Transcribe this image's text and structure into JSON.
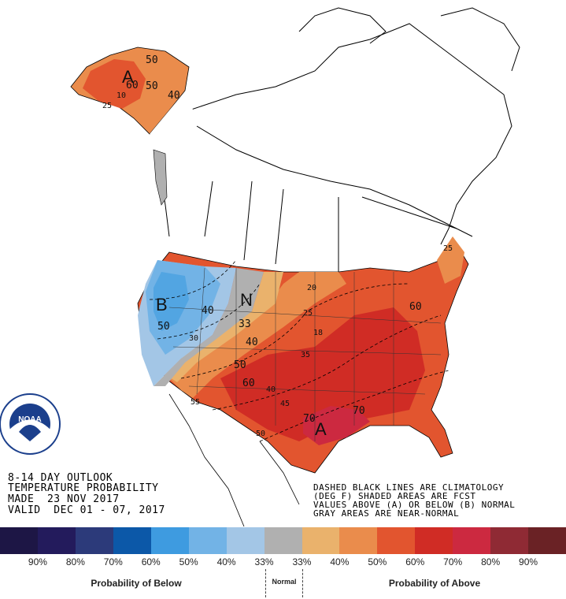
{
  "outlook": {
    "line1": "8-14 DAY OUTLOOK",
    "line2": "TEMPERATURE PROBABILITY",
    "line3": "MADE  23 NOV 2017",
    "line4": "VALID  DEC 01 - 07, 2017"
  },
  "notes": {
    "line1": "DASHED BLACK LINES ARE CLIMATOLOGY",
    "line2": "(DEG F) SHADED AREAS ARE FCST",
    "line3": "VALUES ABOVE (A) OR BELOW (B) NORMAL",
    "line4": "GRAY AREAS ARE NEAR-NORMAL"
  },
  "logo": {
    "text": "NOAA",
    "ring_text": "NATIONAL OCEANIC AND ATMOSPHERIC ADMINISTRATION · U.S. DEPARTMENT OF COMMERCE"
  },
  "map_labels": {
    "alaska_letter": "A",
    "alaska_50a": "50",
    "alaska_60": "60",
    "alaska_50b": "50",
    "alaska_40": "40",
    "alaska_25": "25",
    "alaska_10": "10",
    "west_letter": "B",
    "west_50": "50",
    "west_40": "40",
    "west_33": "30",
    "normal_letter": "N",
    "normal_33": "33",
    "east_20": "20",
    "east_25": "25",
    "east_40": "40",
    "east_50": "50",
    "east_60": "60",
    "east_35": "35",
    "south_40": "40",
    "south_45": "45",
    "south_55": "55",
    "south_50": "50",
    "south_70a": "70",
    "south_70b": "70",
    "south_letter": "A",
    "ne_60": "60",
    "ne_25": "25",
    "mid_18": "18"
  },
  "legend": {
    "colors": [
      "#1d1645",
      "#231b5c",
      "#2c3a7a",
      "#0c58a8",
      "#3e9be0",
      "#72b3e6",
      "#a3c6e6",
      "#b0b0b0",
      "#eab26c",
      "#ea8c4c",
      "#e2552f",
      "#d02c25",
      "#cc2940",
      "#8f2a34",
      "#6a2225"
    ],
    "ticks": [
      "90%",
      "80%",
      "70%",
      "60%",
      "50%",
      "40%",
      "33%",
      "33%",
      "40%",
      "50%",
      "60%",
      "70%",
      "80%",
      "90%"
    ],
    "below_label": "Probability of Below",
    "normal_label": "Normal",
    "above_label": "Probability of Above"
  }
}
